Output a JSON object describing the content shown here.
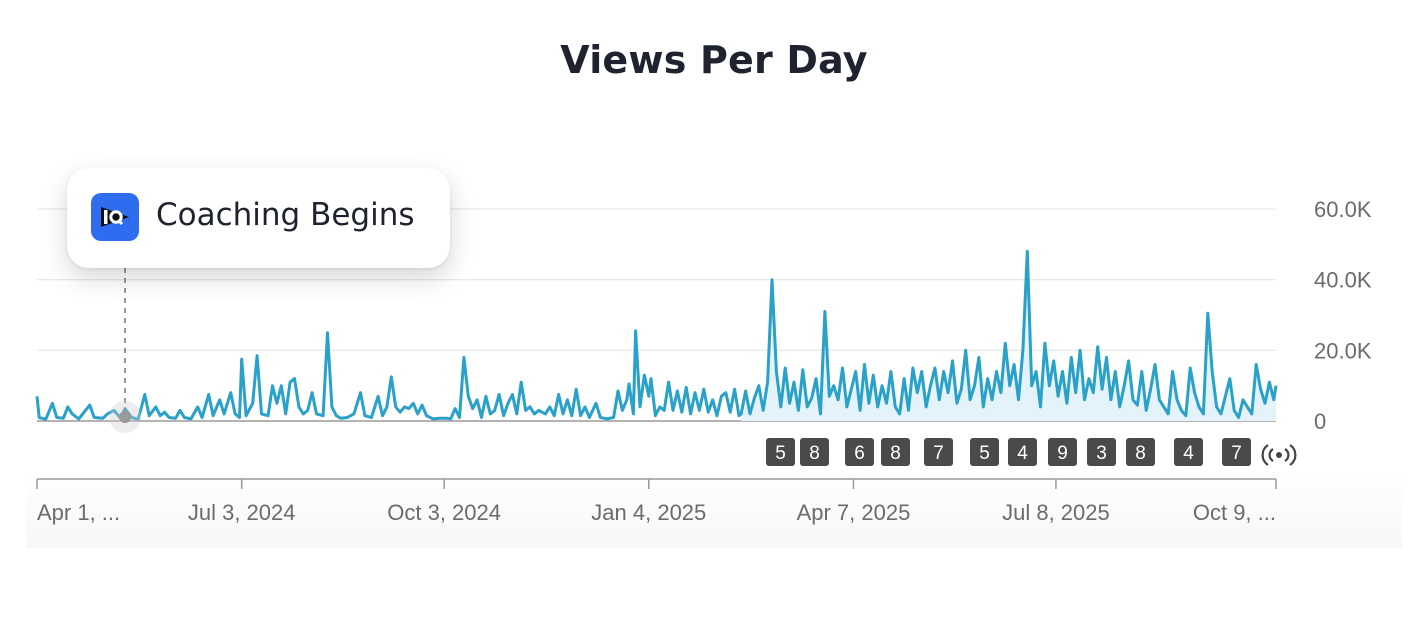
{
  "chart_data": {
    "type": "area",
    "title": "Views Per Day",
    "xlabel": "",
    "ylabel": "",
    "ylim": [
      0,
      60000
    ],
    "y_ticks": [
      {
        "value": 0,
        "label": "0"
      },
      {
        "value": 20000,
        "label": "20.0K"
      },
      {
        "value": 40000,
        "label": "40.0K"
      },
      {
        "value": 60000,
        "label": "60.0K"
      }
    ],
    "x_ticks": [
      "Apr 1, ...",
      "Jul 3, 2024",
      "Oct 3, 2024",
      "Jan 4, 2025",
      "Apr 7, 2025",
      "Jul 8, 2025",
      "Oct 9, ..."
    ],
    "x_tick_positions": [
      0,
      93,
      185,
      278,
      371,
      463,
      563
    ],
    "x_range": [
      0,
      563
    ],
    "series_name": "Views",
    "series_color": "#2aa1c9",
    "area_start": 320,
    "annotation": {
      "label": "Coaching Begins",
      "day": 40,
      "logo": "IQ"
    },
    "day_badges": [
      "5",
      "8",
      "6",
      "8",
      "7",
      "5",
      "4",
      "9",
      "3",
      "8",
      "4",
      "7"
    ],
    "live_icon": "broadcast-icon",
    "points": [
      [
        0,
        7000
      ],
      [
        1,
        1000
      ],
      [
        4,
        500
      ],
      [
        7,
        5000
      ],
      [
        9,
        1000
      ],
      [
        12,
        800
      ],
      [
        14,
        4000
      ],
      [
        16,
        2000
      ],
      [
        19,
        600
      ],
      [
        22,
        3000
      ],
      [
        24,
        4500
      ],
      [
        26,
        1000
      ],
      [
        30,
        800
      ],
      [
        32,
        2000
      ],
      [
        35,
        3000
      ],
      [
        38,
        800
      ],
      [
        40,
        3500
      ],
      [
        43,
        1000
      ],
      [
        46,
        500
      ],
      [
        49,
        7500
      ],
      [
        51,
        1500
      ],
      [
        54,
        4000
      ],
      [
        56,
        1500
      ],
      [
        58,
        2500
      ],
      [
        60,
        1000
      ],
      [
        63,
        800
      ],
      [
        65,
        3000
      ],
      [
        67,
        1000
      ],
      [
        70,
        600
      ],
      [
        73,
        4000
      ],
      [
        75,
        1000
      ],
      [
        78,
        7500
      ],
      [
        80,
        1500
      ],
      [
        83,
        6000
      ],
      [
        85,
        2000
      ],
      [
        88,
        8000
      ],
      [
        90,
        2000
      ],
      [
        92,
        1000
      ],
      [
        93,
        17500
      ],
      [
        95,
        1500
      ],
      [
        98,
        5000
      ],
      [
        100,
        18500
      ],
      [
        102,
        2000
      ],
      [
        105,
        1500
      ],
      [
        107,
        10000
      ],
      [
        109,
        5000
      ],
      [
        111,
        10000
      ],
      [
        113,
        2000
      ],
      [
        115,
        11000
      ],
      [
        117,
        12000
      ],
      [
        119,
        4000
      ],
      [
        121,
        2000
      ],
      [
        123,
        3000
      ],
      [
        125,
        8000
      ],
      [
        127,
        2000
      ],
      [
        130,
        1500
      ],
      [
        132,
        25000
      ],
      [
        134,
        4000
      ],
      [
        136,
        1500
      ],
      [
        138,
        800
      ],
      [
        141,
        1000
      ],
      [
        144,
        2000
      ],
      [
        147,
        8000
      ],
      [
        149,
        1500
      ],
      [
        152,
        1000
      ],
      [
        155,
        7000
      ],
      [
        157,
        1500
      ],
      [
        159,
        4000
      ],
      [
        161,
        12500
      ],
      [
        163,
        4000
      ],
      [
        165,
        2500
      ],
      [
        167,
        4000
      ],
      [
        169,
        3500
      ],
      [
        171,
        5000
      ],
      [
        173,
        2000
      ],
      [
        175,
        4500
      ],
      [
        177,
        1500
      ],
      [
        180,
        600
      ],
      [
        183,
        800
      ],
      [
        186,
        800
      ],
      [
        188,
        600
      ],
      [
        190,
        3500
      ],
      [
        192,
        1000
      ],
      [
        194,
        18000
      ],
      [
        196,
        7000
      ],
      [
        198,
        3500
      ],
      [
        200,
        6000
      ],
      [
        202,
        1000
      ],
      [
        204,
        7000
      ],
      [
        206,
        2000
      ],
      [
        208,
        3000
      ],
      [
        210,
        7500
      ],
      [
        212,
        1500
      ],
      [
        214,
        5000
      ],
      [
        216,
        7500
      ],
      [
        218,
        2000
      ],
      [
        220,
        11000
      ],
      [
        222,
        3000
      ],
      [
        224,
        4000
      ],
      [
        226,
        2000
      ],
      [
        228,
        3000
      ],
      [
        231,
        2000
      ],
      [
        233,
        4000
      ],
      [
        235,
        1500
      ],
      [
        237,
        7500
      ],
      [
        239,
        2000
      ],
      [
        241,
        6000
      ],
      [
        243,
        1500
      ],
      [
        245,
        9000
      ],
      [
        247,
        1500
      ],
      [
        249,
        4000
      ],
      [
        251,
        1000
      ],
      [
        254,
        5000
      ],
      [
        256,
        1000
      ],
      [
        259,
        600
      ],
      [
        262,
        1000
      ],
      [
        264,
        8500
      ],
      [
        266,
        3000
      ],
      [
        268,
        6000
      ],
      [
        269,
        10500
      ],
      [
        271,
        2000
      ],
      [
        272,
        25500
      ],
      [
        274,
        4000
      ],
      [
        276,
        13000
      ],
      [
        278,
        7000
      ],
      [
        279,
        12000
      ],
      [
        281,
        1500
      ],
      [
        283,
        4000
      ],
      [
        285,
        3000
      ],
      [
        287,
        11000
      ],
      [
        289,
        3000
      ],
      [
        291,
        8500
      ],
      [
        293,
        2500
      ],
      [
        295,
        9500
      ],
      [
        297,
        2000
      ],
      [
        299,
        8000
      ],
      [
        301,
        3000
      ],
      [
        303,
        9000
      ],
      [
        305,
        2500
      ],
      [
        307,
        6000
      ],
      [
        309,
        1500
      ],
      [
        311,
        7000
      ],
      [
        313,
        8000
      ],
      [
        315,
        2500
      ],
      [
        317,
        9000
      ],
      [
        319,
        1500
      ],
      [
        320,
        2000
      ],
      [
        322,
        8500
      ],
      [
        324,
        2000
      ],
      [
        326,
        6500
      ],
      [
        328,
        10000
      ],
      [
        330,
        3000
      ],
      [
        332,
        11000
      ],
      [
        334,
        40000
      ],
      [
        336,
        14000
      ],
      [
        338,
        4000
      ],
      [
        340,
        15000
      ],
      [
        342,
        5000
      ],
      [
        344,
        11000
      ],
      [
        346,
        3000
      ],
      [
        348,
        14500
      ],
      [
        350,
        4000
      ],
      [
        352,
        6500
      ],
      [
        354,
        12000
      ],
      [
        356,
        2000
      ],
      [
        358,
        31000
      ],
      [
        360,
        7000
      ],
      [
        362,
        10000
      ],
      [
        364,
        6000
      ],
      [
        366,
        15000
      ],
      [
        368,
        4000
      ],
      [
        370,
        9000
      ],
      [
        372,
        14000
      ],
      [
        374,
        3000
      ],
      [
        376,
        16000
      ],
      [
        378,
        5000
      ],
      [
        380,
        13000
      ],
      [
        382,
        4000
      ],
      [
        384,
        10000
      ],
      [
        386,
        5000
      ],
      [
        388,
        14000
      ],
      [
        390,
        4000
      ],
      [
        392,
        2000
      ],
      [
        394,
        12000
      ],
      [
        396,
        3000
      ],
      [
        398,
        15000
      ],
      [
        400,
        8000
      ],
      [
        402,
        14000
      ],
      [
        404,
        4000
      ],
      [
        406,
        10000
      ],
      [
        408,
        15000
      ],
      [
        410,
        6000
      ],
      [
        412,
        14000
      ],
      [
        414,
        8000
      ],
      [
        416,
        17000
      ],
      [
        418,
        5000
      ],
      [
        420,
        9000
      ],
      [
        422,
        20000
      ],
      [
        424,
        6000
      ],
      [
        426,
        10000
      ],
      [
        428,
        18000
      ],
      [
        430,
        4000
      ],
      [
        432,
        12000
      ],
      [
        434,
        6000
      ],
      [
        436,
        14000
      ],
      [
        438,
        8000
      ],
      [
        440,
        22000
      ],
      [
        442,
        10000
      ],
      [
        444,
        16000
      ],
      [
        446,
        6000
      ],
      [
        448,
        20000
      ],
      [
        450,
        48000
      ],
      [
        452,
        10000
      ],
      [
        454,
        14000
      ],
      [
        456,
        4000
      ],
      [
        458,
        22000
      ],
      [
        460,
        10000
      ],
      [
        462,
        17000
      ],
      [
        464,
        7000
      ],
      [
        466,
        14000
      ],
      [
        468,
        5000
      ],
      [
        470,
        18000
      ],
      [
        472,
        8000
      ],
      [
        474,
        20000
      ],
      [
        476,
        6000
      ],
      [
        478,
        12000
      ],
      [
        480,
        8000
      ],
      [
        482,
        21000
      ],
      [
        484,
        9000
      ],
      [
        486,
        18000
      ],
      [
        488,
        6000
      ],
      [
        490,
        14000
      ],
      [
        492,
        4000
      ],
      [
        494,
        10000
      ],
      [
        496,
        17000
      ],
      [
        498,
        6000
      ],
      [
        500,
        4500
      ],
      [
        502,
        14000
      ],
      [
        504,
        3000
      ],
      [
        506,
        9000
      ],
      [
        508,
        16000
      ],
      [
        510,
        6000
      ],
      [
        512,
        4000
      ],
      [
        514,
        2000
      ],
      [
        516,
        14000
      ],
      [
        518,
        6000
      ],
      [
        520,
        3000
      ],
      [
        522,
        1500
      ],
      [
        524,
        15000
      ],
      [
        526,
        8000
      ],
      [
        528,
        4000
      ],
      [
        530,
        2000
      ],
      [
        532,
        30500
      ],
      [
        534,
        14000
      ],
      [
        536,
        4000
      ],
      [
        538,
        2000
      ],
      [
        540,
        7000
      ],
      [
        542,
        12000
      ],
      [
        544,
        3000
      ],
      [
        546,
        1000
      ],
      [
        548,
        6000
      ],
      [
        550,
        4000
      ],
      [
        552,
        2000
      ],
      [
        554,
        16000
      ],
      [
        556,
        9000
      ],
      [
        558,
        5000
      ],
      [
        560,
        11000
      ],
      [
        562,
        6000
      ],
      [
        563,
        10000
      ]
    ]
  }
}
